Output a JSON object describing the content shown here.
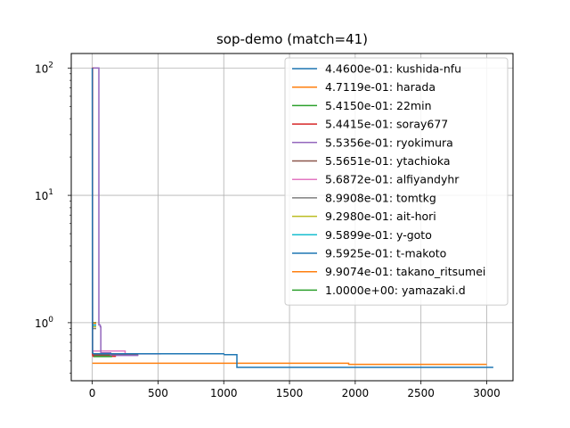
{
  "chart_data": {
    "type": "line",
    "title": "sop-demo (match=41)",
    "xlabel": "",
    "ylabel": "",
    "xlim": [
      -160,
      3200
    ],
    "ylim": [
      0.35,
      130
    ],
    "yscale": "log",
    "grid": true,
    "legend_position": "top-right",
    "x_ticks": [
      0,
      500,
      1000,
      1500,
      2000,
      2500,
      3000
    ],
    "x_tick_labels": [
      "0",
      "500",
      "1000",
      "1500",
      "2000",
      "2500",
      "3000"
    ],
    "y_ticks": [
      1,
      10,
      100
    ],
    "y_tick_labels": [
      "10",
      "10",
      "10"
    ],
    "y_tick_exponents": [
      "0",
      "1",
      "2"
    ],
    "series": [
      {
        "name": "4.4600e-01: kushida-nfu",
        "color": "#1f77b4",
        "x": [
          0,
          2,
          5,
          10,
          1000,
          1005,
          1100,
          1100,
          3050
        ],
        "y": [
          100,
          0.58,
          0.575,
          0.57,
          0.57,
          0.56,
          0.56,
          0.446,
          0.446
        ]
      },
      {
        "name": "4.7119e-01: harada",
        "color": "#ff7f0e",
        "x": [
          0,
          1950,
          1950,
          3000
        ],
        "y": [
          0.48,
          0.48,
          0.471,
          0.471
        ]
      },
      {
        "name": "5.4150e-01: 22min",
        "color": "#2ca02c",
        "x": [
          10,
          150
        ],
        "y": [
          0.5415,
          0.5415
        ]
      },
      {
        "name": "5.4415e-01: soray677",
        "color": "#d62728",
        "x": [
          0,
          0,
          2,
          2,
          5,
          180
        ],
        "y": [
          100,
          100,
          100,
          0.56,
          0.544,
          0.544
        ]
      },
      {
        "name": "5.5356e-01: ryokimura",
        "color": "#9467bd",
        "x": [
          0,
          50,
          50,
          60,
          60,
          65,
          65,
          140,
          140,
          350
        ],
        "y": [
          100,
          100,
          0.96,
          0.96,
          0.93,
          0.93,
          0.58,
          0.58,
          0.5536,
          0.5536
        ]
      },
      {
        "name": "5.5651e-01: ytachioka",
        "color": "#8c564b",
        "x": [
          0,
          350
        ],
        "y": [
          0.5565,
          0.5565
        ]
      },
      {
        "name": "5.6872e-01: alfiyandyhr",
        "color": "#e377c2",
        "x": [
          0,
          250,
          250,
          520
        ],
        "y": [
          0.6,
          0.6,
          0.5687,
          0.5687
        ]
      },
      {
        "name": "8.9908e-01: tomtkg",
        "color": "#7f7f7f",
        "x": [
          0,
          30
        ],
        "y": [
          0.899,
          0.899
        ]
      },
      {
        "name": "9.2980e-01: ait-hori",
        "color": "#bcbd22",
        "x": [
          0,
          30
        ],
        "y": [
          0.9298,
          0.9298
        ]
      },
      {
        "name": "9.5899e-01: y-goto",
        "color": "#17becf",
        "x": [
          0,
          30
        ],
        "y": [
          0.959,
          0.959
        ]
      },
      {
        "name": "9.5925e-01: t-makoto",
        "color": "#1f77b4",
        "x": [
          0,
          30
        ],
        "y": [
          0.9593,
          0.9593
        ]
      },
      {
        "name": "9.9074e-01: takano_ritsumei",
        "color": "#ff7f0e",
        "x": [
          0,
          30
        ],
        "y": [
          0.9907,
          0.9907
        ]
      },
      {
        "name": "1.0000e+00: yamazaki.d",
        "color": "#2ca02c",
        "x": [
          0,
          30
        ],
        "y": [
          1.0,
          1.0
        ]
      }
    ]
  }
}
